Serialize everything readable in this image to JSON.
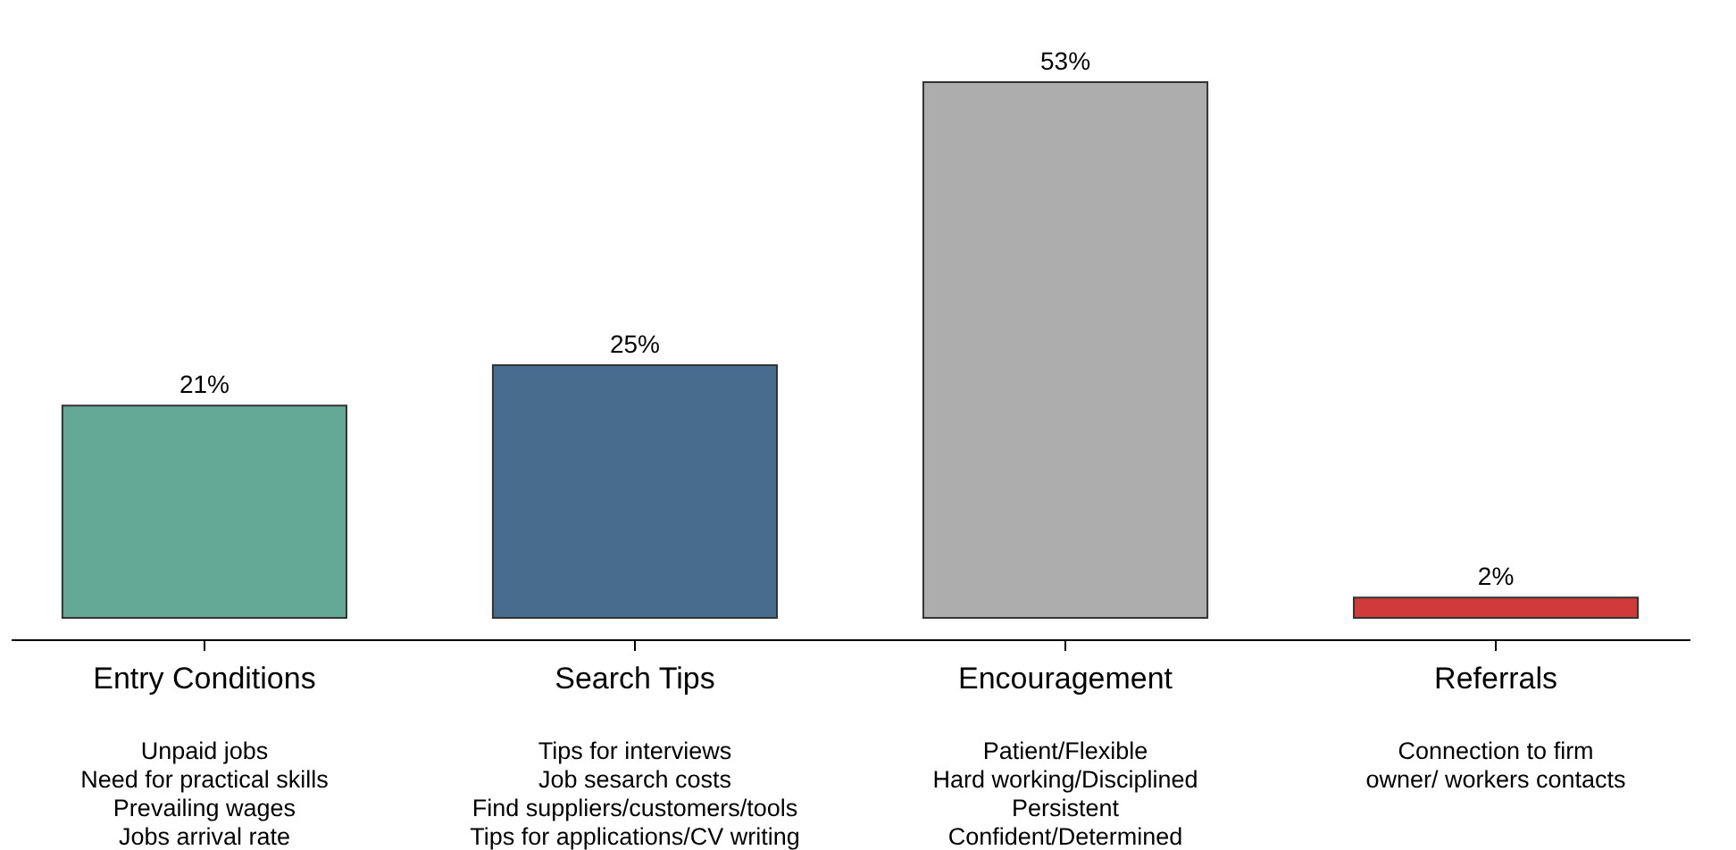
{
  "chart_data": {
    "type": "bar",
    "categories": [
      "Entry Conditions",
      "Search Tips",
      "Encouragement",
      "Referrals"
    ],
    "values": [
      21,
      25,
      53,
      2
    ],
    "colors": [
      "#64a896",
      "#476c8e",
      "#adadad",
      "#d13a3a"
    ],
    "value_labels": [
      "21%",
      "25%",
      "53%",
      "2%"
    ],
    "grid": false,
    "annotations": [
      "Unpaid jobs\nNeed for practical skills\nPrevailing wages\nJobs arrival rate",
      "Tips for interviews\nJob sesarch costs\nFind suppliers/customers/tools\nTips for applications/CV writing",
      "Patient/Flexible\nHard working/Disciplined\nPersistent\nConfident/Determined",
      "Connection to firm\nowner/ workers contacts"
    ]
  }
}
